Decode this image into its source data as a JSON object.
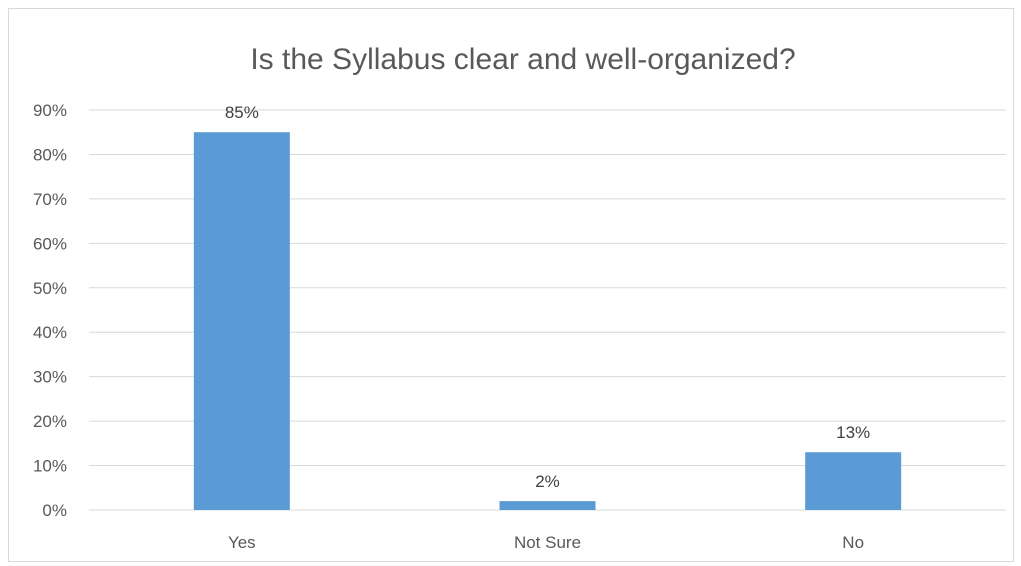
{
  "chart_data": {
    "type": "bar",
    "title": "Is the Syllabus clear and well-organized?",
    "categories": [
      "Yes",
      "Not Sure",
      "No"
    ],
    "values": [
      85,
      2,
      13
    ],
    "data_labels": [
      "85%",
      "2%",
      "13%"
    ],
    "ylim": [
      0,
      90
    ],
    "y_ticks": [
      "0%",
      "10%",
      "20%",
      "30%",
      "40%",
      "50%",
      "60%",
      "70%",
      "80%",
      "90%"
    ],
    "xlabel": "",
    "ylabel": "",
    "grid": true,
    "legend": "none",
    "bar_color": "#5b9bd5",
    "grid_color": "#d9d9d9"
  }
}
